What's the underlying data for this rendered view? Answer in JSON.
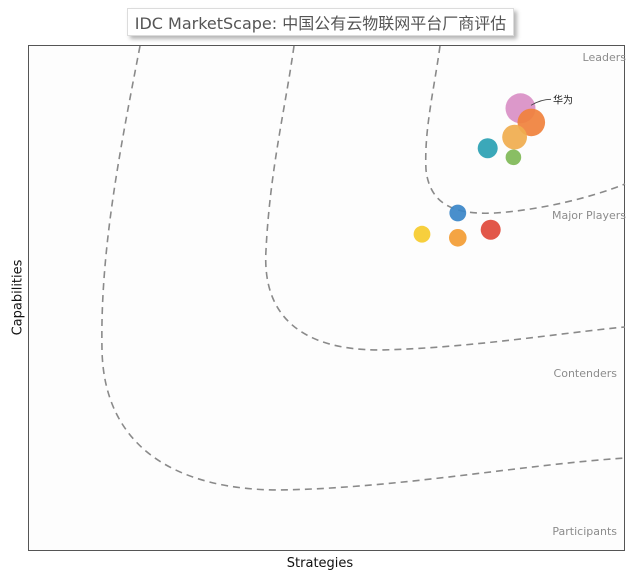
{
  "title": "IDC MarketScape: 中国公有云物联网平台厂商评估",
  "chart_data": {
    "type": "scatter",
    "title": "IDC MarketScape: 中国公有云物联网平台厂商评估",
    "xlabel": "Strategies",
    "ylabel": "Capabilities",
    "xlim": [
      0,
      100
    ],
    "ylim": [
      0,
      100
    ],
    "grid": false,
    "zones": [
      "Leaders",
      "Major Players",
      "Contenders",
      "Participants"
    ],
    "points": [
      {
        "x": 82.5,
        "y": 87.5,
        "size": 1.0,
        "color": "#d98fc6",
        "label": "华为"
      },
      {
        "x": 84.3,
        "y": 84.7,
        "size": 0.9,
        "color": "#f0813c",
        "label": ""
      },
      {
        "x": 81.5,
        "y": 81.8,
        "size": 0.78,
        "color": "#f0ad4e",
        "label": ""
      },
      {
        "x": 77.0,
        "y": 79.6,
        "size": 0.58,
        "color": "#2aa1b3",
        "label": ""
      },
      {
        "x": 81.3,
        "y": 77.8,
        "size": 0.4,
        "color": "#7fb857",
        "label": ""
      },
      {
        "x": 72.0,
        "y": 66.8,
        "size": 0.45,
        "color": "#3a86c8",
        "label": ""
      },
      {
        "x": 77.5,
        "y": 63.5,
        "size": 0.58,
        "color": "#e0493a",
        "label": ""
      },
      {
        "x": 66.0,
        "y": 62.6,
        "size": 0.45,
        "color": "#f6cb2c",
        "label": ""
      },
      {
        "x": 72.0,
        "y": 61.9,
        "size": 0.48,
        "color": "#f39c33",
        "label": ""
      }
    ]
  }
}
